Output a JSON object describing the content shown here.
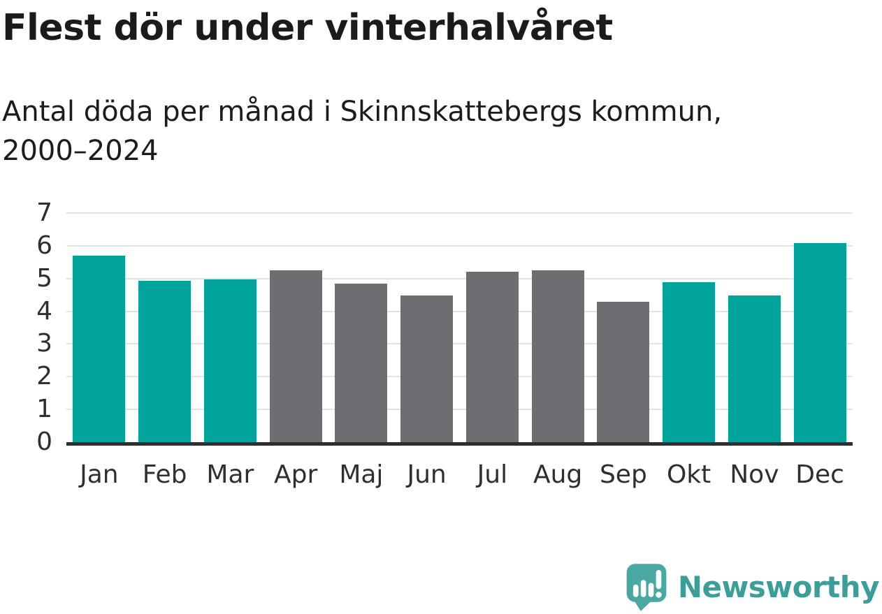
{
  "title": "Flest dör under vinterhalvåret",
  "subtitle": "Antal döda per månad i Skinnskattebergs kommun,\n2000–2024",
  "logo": {
    "text": "Newsworthy",
    "icon": "newsworthy-speech-bubble-chart-icon"
  },
  "colors": {
    "winter_bar": "#00a49a",
    "summer_bar": "#6d6d72",
    "gridline": "#e3e3e3",
    "axis_line": "#2e2e2e",
    "tick_label": "#2f2f2f",
    "title_text": "#1b1b1b",
    "logo_mark": "#4aa8a2",
    "logo_text": "#3c9e99"
  },
  "chart_data": {
    "type": "bar",
    "title": "Flest dör under vinterhalvåret",
    "subtitle": "Antal döda per månad i Skinnskattebergs kommun, 2000–2024",
    "categories": [
      "Jan",
      "Feb",
      "Mar",
      "Apr",
      "Maj",
      "Jun",
      "Jul",
      "Aug",
      "Sep",
      "Okt",
      "Nov",
      "Dec"
    ],
    "values": [
      5.7,
      4.92,
      4.97,
      5.24,
      4.85,
      4.48,
      5.2,
      5.25,
      4.3,
      4.88,
      4.48,
      6.08
    ],
    "value_colors": [
      "winter_bar",
      "winter_bar",
      "winter_bar",
      "summer_bar",
      "summer_bar",
      "summer_bar",
      "summer_bar",
      "summer_bar",
      "summer_bar",
      "winter_bar",
      "winter_bar",
      "winter_bar"
    ],
    "xlabel": "",
    "ylabel": "",
    "ylim": [
      0,
      7
    ],
    "yticks": [
      0,
      1,
      2,
      3,
      4,
      5,
      6,
      7
    ],
    "grid": true,
    "legend": false,
    "highlight_meaning": "teal = vinterhalvårets månader, grå = sommarhalvårets månader"
  }
}
